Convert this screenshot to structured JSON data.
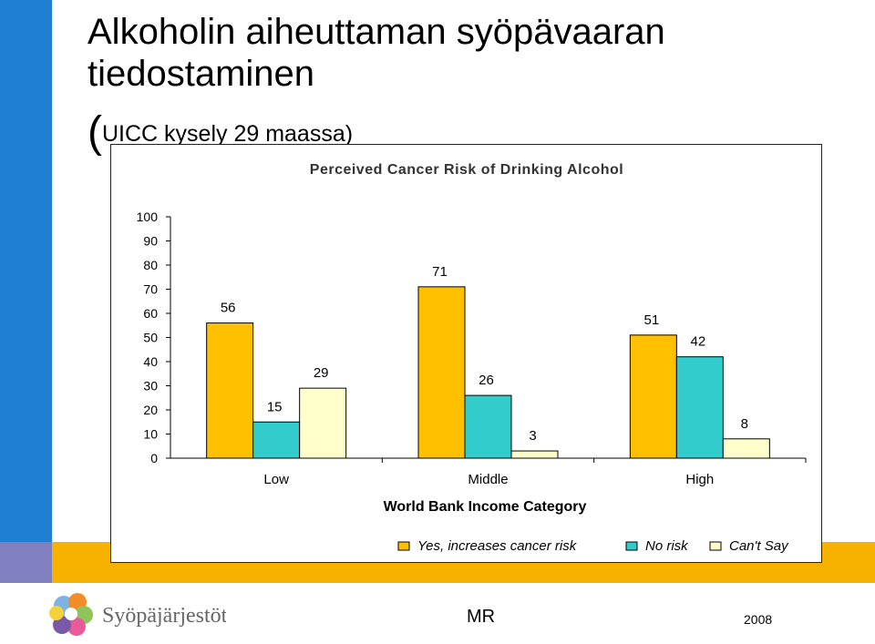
{
  "slide": {
    "title": "Alkoholin aiheuttaman syöpävaaran tiedostaminen",
    "subtitle_open": "(",
    "subtitle_text": "UICC kysely 29 maassa)"
  },
  "footer": {
    "org_name": "Syöpäjärjestöt",
    "author": "MR",
    "year": "2008"
  },
  "colors": {
    "left_bar": "#1f7fd1",
    "band": "#f7b200",
    "yes": "#ffc000",
    "no": "#33cccc",
    "cant": "#ffffcc"
  },
  "chart_data": {
    "type": "bar",
    "title": "Perceived Cancer Risk of Drinking Alcohol",
    "xlabel": "World Bank Income Category",
    "ylabel": "",
    "categories": [
      "Low",
      "Middle",
      "High"
    ],
    "series": [
      {
        "name": "Yes, increases cancer risk",
        "values": [
          56,
          71,
          51
        ],
        "color": "#ffc000"
      },
      {
        "name": "No risk",
        "values": [
          15,
          26,
          42
        ],
        "color": "#33cccc"
      },
      {
        "name": "Can't Say",
        "values": [
          29,
          3,
          8
        ],
        "color": "#ffffcc"
      }
    ],
    "data_labels": [
      [
        "56",
        "15",
        "29"
      ],
      [
        "71",
        "26",
        "3"
      ],
      [
        "51",
        "42",
        "8"
      ]
    ],
    "ylim": [
      0,
      100
    ],
    "yticks": [
      "0",
      "10",
      "20",
      "30",
      "40",
      "50",
      "60",
      "70",
      "80",
      "90",
      "100"
    ],
    "legend_position": "bottom-right",
    "grid": false
  }
}
